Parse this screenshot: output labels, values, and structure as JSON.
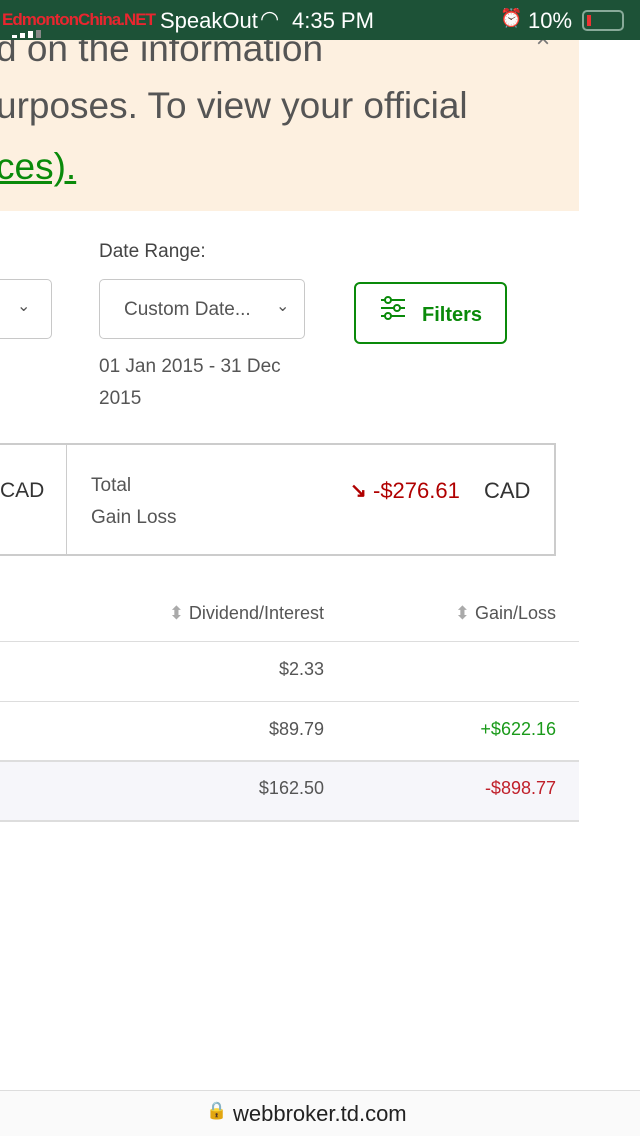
{
  "status_bar": {
    "carrier": "SpeakOut",
    "time": "4:35 PM",
    "battery": "10%",
    "watermark": "EdmontonChina.NET"
  },
  "banner": {
    "line1": "d on the information",
    "line2": "urposes. To view your official",
    "link": "ces)."
  },
  "date_range": {
    "label": "Date Range:",
    "value": "Custom Date...",
    "range": "01 Jan 2015 - 31 Dec 2015"
  },
  "filters_label": "Filters",
  "summary": {
    "left_currency": "CAD",
    "total_label_1": "Total",
    "total_label_2": "Gain Loss",
    "total_value": "-$276.61",
    "total_currency": "CAD"
  },
  "table": {
    "headers": [
      "Dividend/Interest",
      "Gain/Loss"
    ],
    "rows": [
      {
        "dividend": "$2.33",
        "gain": ""
      },
      {
        "dividend": "$89.79",
        "gain": "+$622.16"
      },
      {
        "dividend": "$162.50",
        "gain": "-$898.77"
      }
    ]
  },
  "url": "webbroker.td.com",
  "colors": {
    "green": "#0a8a0a",
    "red": "#b00000",
    "header": "#1d5237"
  }
}
